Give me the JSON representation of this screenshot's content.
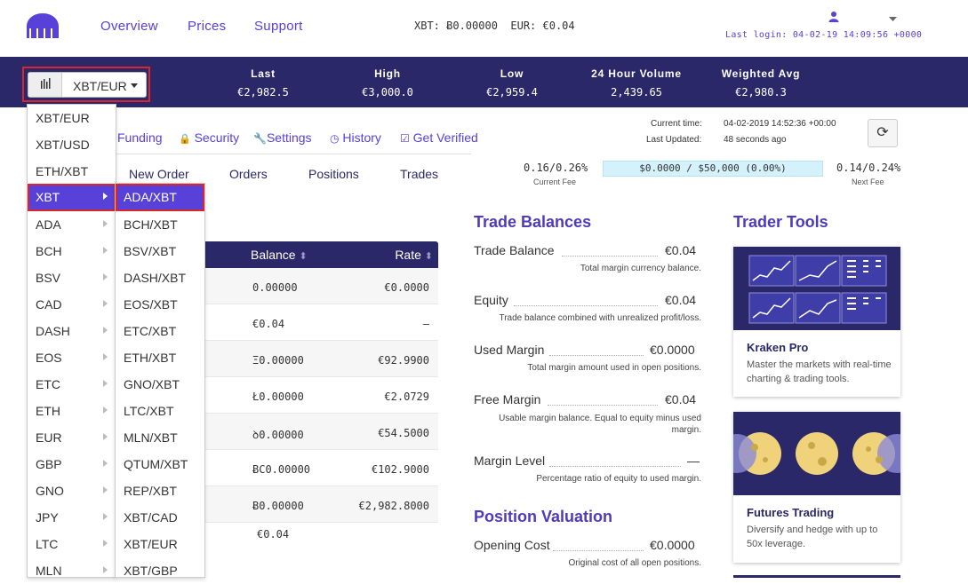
{
  "header": {
    "nav": [
      "Overview",
      "Prices",
      "Support"
    ],
    "balance_xbt": "XBT: Ƀ0.00000",
    "balance_eur": "EUR: €0.04",
    "last_login": "Last login: 04-02-19 14:09:56 +0000"
  },
  "ticker": {
    "pair": "XBT/EUR",
    "stats": [
      {
        "label": "Last",
        "value": "€2,982.5"
      },
      {
        "label": "High",
        "value": "€3,000.0"
      },
      {
        "label": "Low",
        "value": "€2,959.4"
      },
      {
        "label": "24 Hour Volume",
        "value": "2,439.65"
      },
      {
        "label": "Weighted Avg",
        "value": "€2,980.3"
      }
    ]
  },
  "subnav": [
    "Funding",
    "Security",
    "Settings",
    "History",
    "Get Verified"
  ],
  "time": {
    "current_label": "Current time:",
    "current_value": "04-02-2019 14:52:36 +00:00",
    "updated_label": "Last Updated:",
    "updated_value": "48 seconds ago"
  },
  "tabs": [
    "New Order",
    "Orders",
    "Positions",
    "Trades"
  ],
  "fees": {
    "current": "0.16/0.26%",
    "current_label": "Current Fee",
    "bar": "$0.0000 / $50,000 (0.00%)",
    "next": "0.14/0.24%",
    "next_label": "Next Fee"
  },
  "balances_table": {
    "headers": [
      "Balance",
      "Rate"
    ],
    "rows": [
      {
        "balance": "0.00000",
        "rate": "€0.0000"
      },
      {
        "balance": "€0.04",
        "rate": "—"
      },
      {
        "balance": "Ξ0.00000",
        "rate": "€92.9900"
      },
      {
        "balance": "Ł0.00000",
        "rate": "€2.0729"
      },
      {
        "balance": "ꝺ0.00000",
        "rate": "€54.5000"
      },
      {
        "balance": "ɃC0.00000",
        "rate": "€102.9000"
      },
      {
        "balance": "Ƀ0.00000",
        "rate": "€2,982.8000"
      }
    ],
    "total": "€0.04"
  },
  "trade_balances": {
    "title": "Trade Balances",
    "items": [
      {
        "label": "Trade Balance",
        "value": "€0.04",
        "desc": "Total margin currency balance."
      },
      {
        "label": "Equity",
        "value": "€0.04",
        "desc": "Trade balance combined with unrealized profit/loss."
      },
      {
        "label": "Used Margin",
        "value": "€0.0000",
        "desc": "Total margin amount used in open positions."
      },
      {
        "label": "Free Margin",
        "value": "€0.04",
        "desc": "Usable margin balance. Equal to equity minus used margin."
      },
      {
        "label": "Margin Level",
        "value": "—",
        "desc": "Percentage ratio of equity to used margin."
      }
    ]
  },
  "position_valuation": {
    "title": "Position Valuation",
    "items": [
      {
        "label": "Opening Cost",
        "value": "€0.0000",
        "desc": "Original cost of all open positions."
      }
    ]
  },
  "trader_tools": {
    "title": "Trader Tools",
    "cards": [
      {
        "title": "Kraken Pro",
        "desc": "Master the markets with real-time charting & trading tools."
      },
      {
        "title": "Futures Trading",
        "desc": "Diversify and hedge with up to 50x leverage."
      }
    ]
  },
  "dropdown": {
    "level1": [
      {
        "label": "XBT/EUR",
        "sub": false
      },
      {
        "label": "XBT/USD",
        "sub": false
      },
      {
        "label": "ETH/XBT",
        "sub": false
      },
      {
        "label": "XBT",
        "sub": true
      },
      {
        "label": "ADA",
        "sub": true
      },
      {
        "label": "BCH",
        "sub": true
      },
      {
        "label": "BSV",
        "sub": true
      },
      {
        "label": "CAD",
        "sub": true
      },
      {
        "label": "DASH",
        "sub": true
      },
      {
        "label": "EOS",
        "sub": true
      },
      {
        "label": "ETC",
        "sub": true
      },
      {
        "label": "ETH",
        "sub": true
      },
      {
        "label": "EUR",
        "sub": true
      },
      {
        "label": "GBP",
        "sub": true
      },
      {
        "label": "GNO",
        "sub": true
      },
      {
        "label": "JPY",
        "sub": true
      },
      {
        "label": "LTC",
        "sub": true
      },
      {
        "label": "MLN",
        "sub": true
      }
    ],
    "level2": [
      "ADA/XBT",
      "BCH/XBT",
      "BSV/XBT",
      "DASH/XBT",
      "EOS/XBT",
      "ETC/XBT",
      "ETH/XBT",
      "GNO/XBT",
      "LTC/XBT",
      "MLN/XBT",
      "QTUM/XBT",
      "REP/XBT",
      "XBT/CAD",
      "XBT/EUR",
      "XBT/GBP"
    ]
  },
  "colors": {
    "brand": "#5741d9",
    "ticker_bg": "#2a2868",
    "highlight": "#d9262c"
  }
}
